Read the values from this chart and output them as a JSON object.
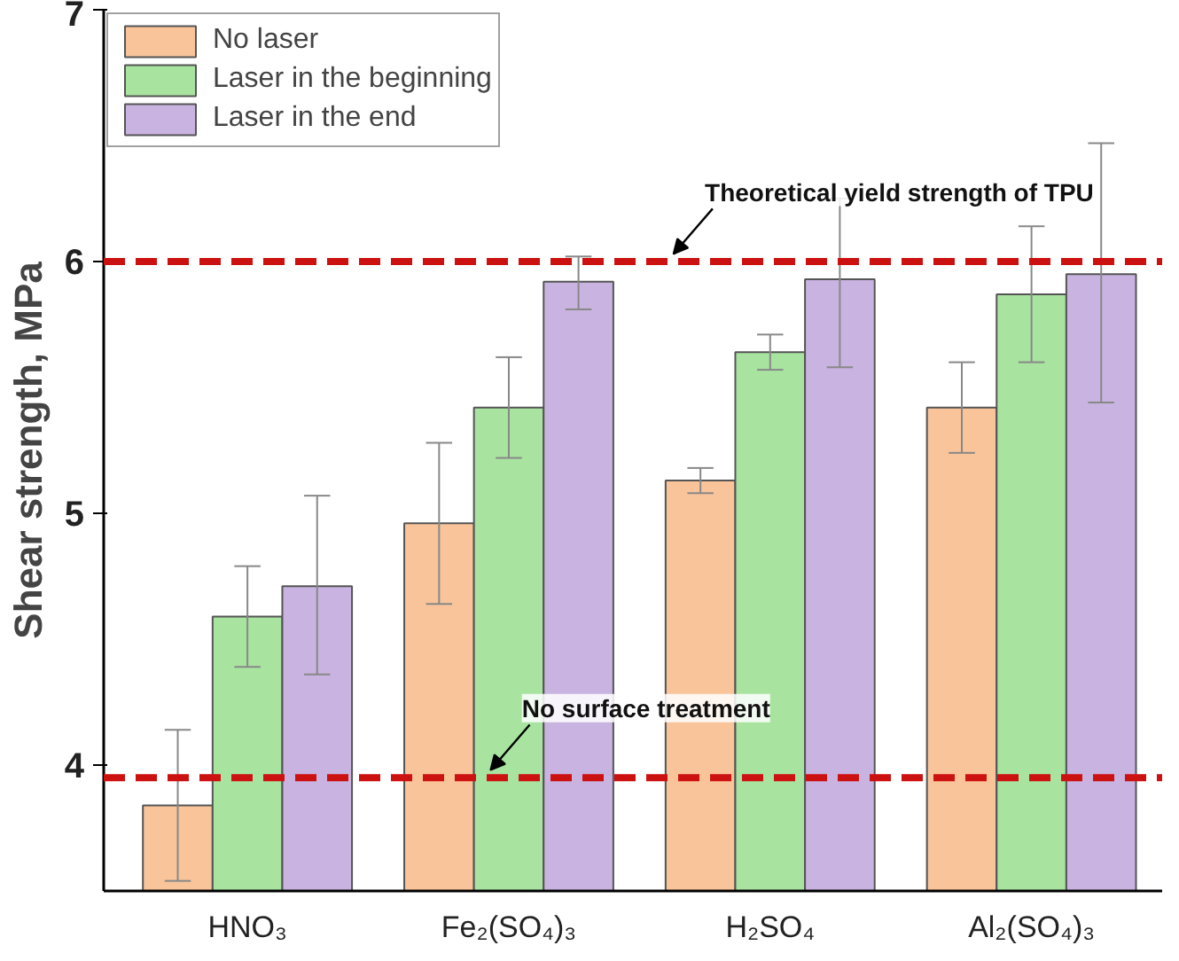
{
  "chart_data": {
    "type": "bar",
    "ylabel": "Shear strength, MPa",
    "categories": [
      "HNO₃",
      "Fe₂(SO₄)₃",
      "H₂SO₄",
      "Al₂(SO₄)₃"
    ],
    "series": [
      {
        "name": "No laser",
        "color": "#f9c49a",
        "values": [
          3.84,
          4.96,
          5.13,
          5.42
        ],
        "errors": [
          [
            3.54,
            4.14
          ],
          [
            4.64,
            5.28
          ],
          [
            5.08,
            5.18
          ],
          [
            5.24,
            5.6
          ]
        ]
      },
      {
        "name": "Laser in the beginning",
        "color": "#a8e4a0",
        "values": [
          4.59,
          5.42,
          5.64,
          5.87
        ],
        "errors": [
          [
            4.39,
            4.79
          ],
          [
            5.22,
            5.62
          ],
          [
            5.57,
            5.71
          ],
          [
            5.6,
            6.14
          ]
        ]
      },
      {
        "name": "Laser in the end",
        "color": "#c9b3e0",
        "values": [
          4.71,
          5.92,
          5.93,
          5.95
        ],
        "errors": [
          [
            4.36,
            5.07
          ],
          [
            5.81,
            6.02
          ],
          [
            5.58,
            6.25
          ],
          [
            5.44,
            6.47
          ]
        ]
      }
    ],
    "ylim": [
      3.5,
      7
    ],
    "yticks": [
      4,
      5,
      6,
      7
    ],
    "grid": false,
    "legend": "top left",
    "ref_lines": [
      {
        "axis": "y",
        "value": 6.0,
        "label": "Theoretical yield strength of TPU",
        "color": "#cc1111",
        "line_style": "dashed"
      },
      {
        "axis": "y",
        "value": 3.95,
        "label": "No surface treatment",
        "color": "#cc1111",
        "line_style": "dashed"
      }
    ]
  }
}
